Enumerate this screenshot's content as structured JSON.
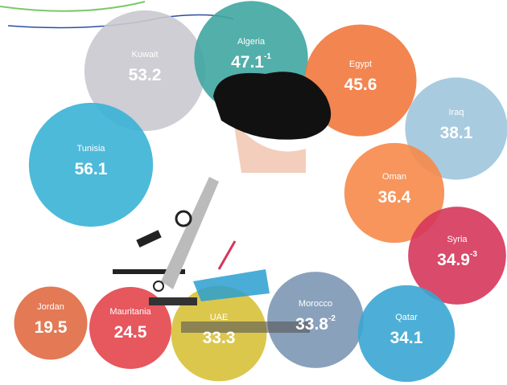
{
  "chart_data": {
    "type": "bubble",
    "categories": [
      "Kuwait",
      "Algeria",
      "Egypt",
      "Iraq",
      "Tunisia",
      "Oman",
      "Syria",
      "Jordan",
      "Mauritania",
      "UAE",
      "Morocco",
      "Qatar"
    ],
    "values": [
      53.2,
      47.1,
      45.6,
      38.1,
      56.1,
      36.4,
      34.9,
      19.5,
      24.5,
      33.3,
      33.8,
      34.1
    ],
    "superscripts": [
      null,
      "-1",
      null,
      null,
      null,
      null,
      "-3",
      null,
      null,
      null,
      "-2",
      null
    ],
    "colors": [
      "#c9c9cf",
      "#3fa6a1",
      "#f1783d",
      "#9ec5dc",
      "#3ab3d6",
      "#f68a4a",
      "#d6365a",
      "#e06a43",
      "#e3454d",
      "#d8c13a",
      "#7d97b4",
      "#3aa6d3"
    ]
  }
}
